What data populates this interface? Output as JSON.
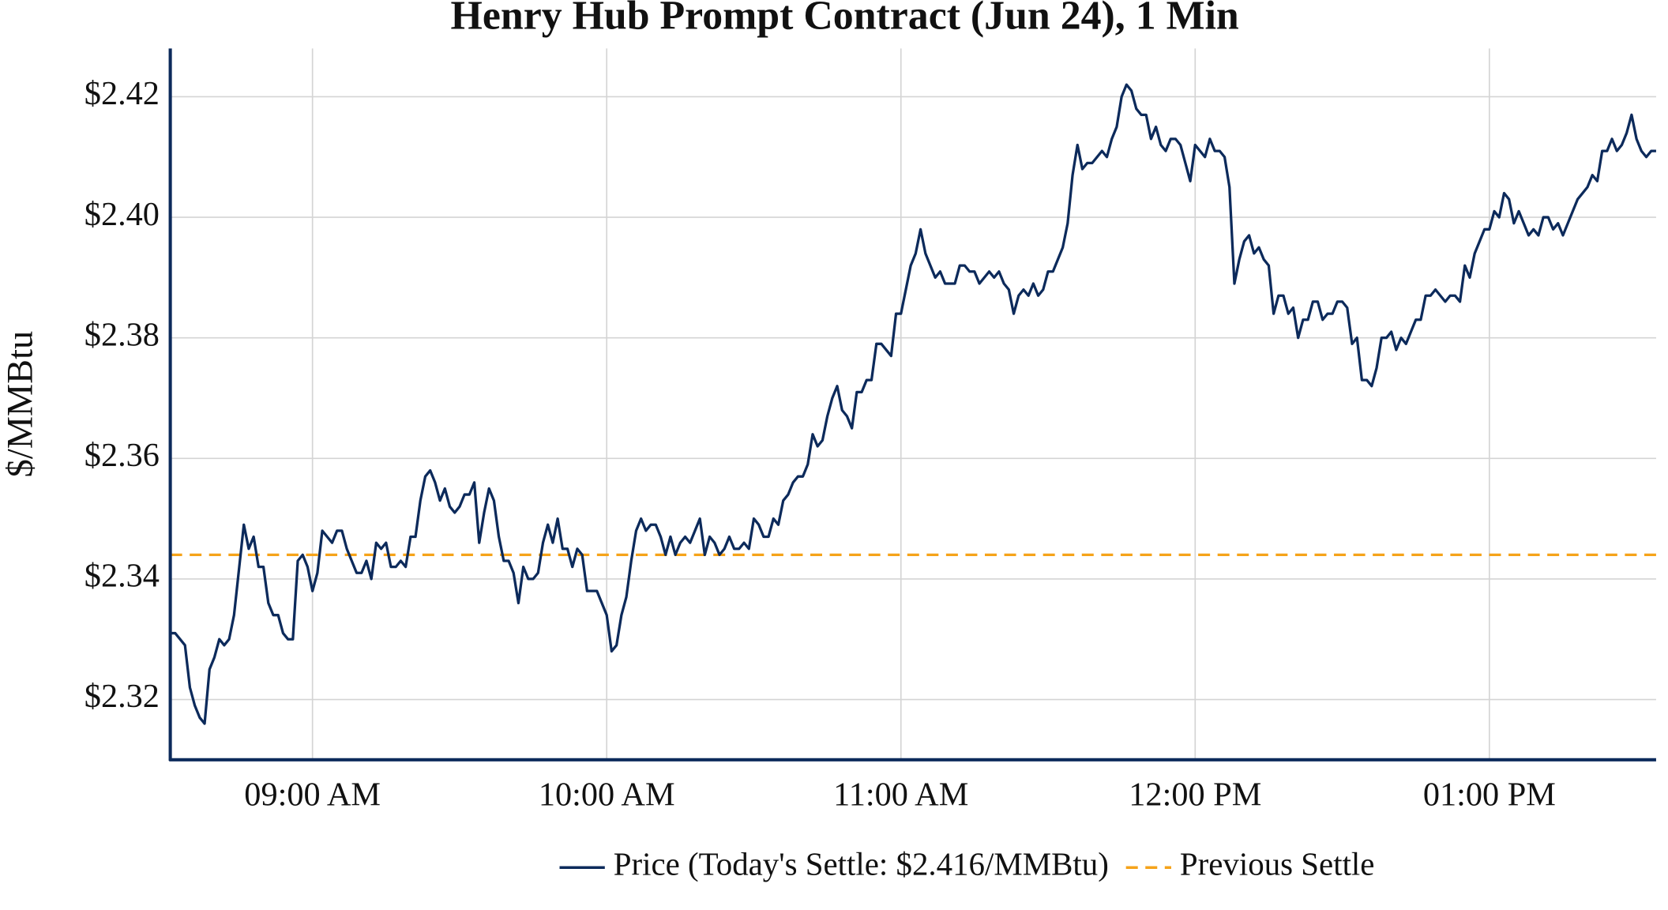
{
  "chart_data": {
    "type": "line",
    "title": "Henry Hub Prompt Contract (Jun 24), 1 Min",
    "y_label": "$/MMBtu",
    "x": [
      "08:31 AM",
      "08:32 AM",
      "08:34 AM",
      "08:35 AM",
      "08:36 AM",
      "08:37 AM",
      "08:38 AM",
      "08:39 AM",
      "08:40 AM",
      "08:41 AM",
      "08:42 AM",
      "08:43 AM",
      "08:44 AM",
      "08:46 AM",
      "08:47 AM",
      "08:48 AM",
      "08:49 AM",
      "08:50 AM",
      "08:51 AM",
      "08:52 AM",
      "08:53 AM",
      "08:54 AM",
      "08:55 AM",
      "08:56 AM",
      "08:57 AM",
      "08:58 AM",
      "08:59 AM",
      "09:00 AM",
      "09:01 AM",
      "09:02 AM",
      "09:03 AM",
      "09:04 AM",
      "09:05 AM",
      "09:06 AM",
      "09:07 AM",
      "09:08 AM",
      "09:09 AM",
      "09:10 AM",
      "09:11 AM",
      "09:12 AM",
      "09:13 AM",
      "09:14 AM",
      "09:15 AM",
      "09:16 AM",
      "09:17 AM",
      "09:18 AM",
      "09:19 AM",
      "09:20 AM",
      "09:21 AM",
      "09:22 AM",
      "09:23 AM",
      "09:24 AM",
      "09:25 AM",
      "09:26 AM",
      "09:27 AM",
      "09:28 AM",
      "09:29 AM",
      "09:30 AM",
      "09:31 AM",
      "09:32 AM",
      "09:33 AM",
      "09:34 AM",
      "09:35 AM",
      "09:36 AM",
      "09:37 AM",
      "09:38 AM",
      "09:39 AM",
      "09:40 AM",
      "09:41 AM",
      "09:42 AM",
      "09:43 AM",
      "09:44 AM",
      "09:45 AM",
      "09:46 AM",
      "09:47 AM",
      "09:48 AM",
      "09:49 AM",
      "09:50 AM",
      "09:51 AM",
      "09:52 AM",
      "09:53 AM",
      "09:54 AM",
      "09:55 AM",
      "09:56 AM",
      "09:57 AM",
      "09:58 AM",
      "09:59 AM",
      "10:00 AM",
      "10:01 AM",
      "10:02 AM",
      "10:03 AM",
      "10:04 AM",
      "10:05 AM",
      "10:06 AM",
      "10:07 AM",
      "10:08 AM",
      "10:09 AM",
      "10:10 AM",
      "10:11 AM",
      "10:12 AM",
      "10:13 AM",
      "10:14 AM",
      "10:15 AM",
      "10:16 AM",
      "10:17 AM",
      "10:18 AM",
      "10:19 AM",
      "10:20 AM",
      "10:21 AM",
      "10:22 AM",
      "10:23 AM",
      "10:24 AM",
      "10:25 AM",
      "10:26 AM",
      "10:27 AM",
      "10:28 AM",
      "10:29 AM",
      "10:30 AM",
      "10:31 AM",
      "10:32 AM",
      "10:33 AM",
      "10:34 AM",
      "10:35 AM",
      "10:36 AM",
      "10:37 AM",
      "10:38 AM",
      "10:39 AM",
      "10:40 AM",
      "10:41 AM",
      "10:42 AM",
      "10:43 AM",
      "10:44 AM",
      "10:45 AM",
      "10:46 AM",
      "10:47 AM",
      "10:48 AM",
      "10:49 AM",
      "10:50 AM",
      "10:51 AM",
      "10:52 AM",
      "10:53 AM",
      "10:54 AM",
      "10:55 AM",
      "10:56 AM",
      "10:57 AM",
      "10:58 AM",
      "10:59 AM",
      "11:00 AM",
      "11:01 AM",
      "11:02 AM",
      "11:03 AM",
      "11:04 AM",
      "11:05 AM",
      "11:06 AM",
      "11:07 AM",
      "11:08 AM",
      "11:09 AM",
      "11:10 AM",
      "11:11 AM",
      "11:12 AM",
      "11:13 AM",
      "11:14 AM",
      "11:15 AM",
      "11:16 AM",
      "11:17 AM",
      "11:18 AM",
      "11:19 AM",
      "11:20 AM",
      "11:21 AM",
      "11:22 AM",
      "11:23 AM",
      "11:24 AM",
      "11:25 AM",
      "11:26 AM",
      "11:27 AM",
      "11:28 AM",
      "11:29 AM",
      "11:30 AM",
      "11:31 AM",
      "11:32 AM",
      "11:33 AM",
      "11:34 AM",
      "11:35 AM",
      "11:36 AM",
      "11:37 AM",
      "11:38 AM",
      "11:39 AM",
      "11:40 AM",
      "11:41 AM",
      "11:42 AM",
      "11:43 AM",
      "11:44 AM",
      "11:45 AM",
      "11:46 AM",
      "11:47 AM",
      "11:48 AM",
      "11:49 AM",
      "11:50 AM",
      "11:51 AM",
      "11:52 AM",
      "11:53 AM",
      "11:54 AM",
      "11:55 AM",
      "11:56 AM",
      "11:57 AM",
      "11:58 AM",
      "11:59 AM",
      "12:00 PM",
      "12:01 PM",
      "12:02 PM",
      "12:03 PM",
      "12:04 PM",
      "12:05 PM",
      "12:06 PM",
      "12:07 PM",
      "12:08 PM",
      "12:09 PM",
      "12:10 PM",
      "12:11 PM",
      "12:12 PM",
      "12:13 PM",
      "12:14 PM",
      "12:15 PM",
      "12:16 PM",
      "12:17 PM",
      "12:18 PM",
      "12:19 PM",
      "12:20 PM",
      "12:21 PM",
      "12:22 PM",
      "12:23 PM",
      "12:24 PM",
      "12:25 PM",
      "12:26 PM",
      "12:27 PM",
      "12:28 PM",
      "12:29 PM",
      "12:30 PM",
      "12:31 PM",
      "12:32 PM",
      "12:33 PM",
      "12:34 PM",
      "12:35 PM",
      "12:36 PM",
      "12:37 PM",
      "12:38 PM",
      "12:39 PM",
      "12:40 PM",
      "12:41 PM",
      "12:42 PM",
      "12:43 PM",
      "12:44 PM",
      "12:45 PM",
      "12:46 PM",
      "12:47 PM",
      "12:48 PM",
      "12:49 PM",
      "12:50 PM",
      "12:51 PM",
      "12:52 PM",
      "12:53 PM",
      "12:54 PM",
      "12:55 PM",
      "12:56 PM",
      "12:57 PM",
      "12:58 PM",
      "12:59 PM",
      "01:00 PM",
      "01:01 PM",
      "01:02 PM",
      "01:03 PM",
      "01:04 PM",
      "01:05 PM",
      "01:06 PM",
      "01:07 PM",
      "01:08 PM",
      "01:09 PM",
      "01:10 PM",
      "01:11 PM",
      "01:12 PM",
      "01:13 PM",
      "01:14 PM",
      "01:15 PM",
      "01:16 PM",
      "01:17 PM",
      "01:18 PM",
      "01:19 PM",
      "01:20 PM",
      "01:21 PM",
      "01:22 PM",
      "01:23 PM",
      "01:24 PM",
      "01:25 PM",
      "01:26 PM",
      "01:27 PM",
      "01:28 PM",
      "01:29 PM",
      "01:30 PM",
      "01:31 PM",
      "01:32 PM",
      "01:33 PM",
      "01:34 PM"
    ],
    "series": [
      {
        "name": "Price (Today's Settle: $2.416/MMBtu)",
        "color": "#0c2a5b",
        "values": [
          2.331,
          2.331,
          2.329,
          2.322,
          2.319,
          2.317,
          2.316,
          2.325,
          2.327,
          2.33,
          2.329,
          2.33,
          2.334,
          2.349,
          2.345,
          2.347,
          2.342,
          2.342,
          2.336,
          2.334,
          2.334,
          2.331,
          2.33,
          2.33,
          2.343,
          2.344,
          2.342,
          2.338,
          2.341,
          2.348,
          2.347,
          2.346,
          2.348,
          2.348,
          2.345,
          2.343,
          2.341,
          2.341,
          2.343,
          2.34,
          2.346,
          2.345,
          2.346,
          2.342,
          2.342,
          2.343,
          2.342,
          2.347,
          2.347,
          2.353,
          2.357,
          2.358,
          2.356,
          2.353,
          2.355,
          2.352,
          2.351,
          2.352,
          2.354,
          2.354,
          2.356,
          2.346,
          2.351,
          2.355,
          2.353,
          2.347,
          2.343,
          2.343,
          2.341,
          2.336,
          2.342,
          2.34,
          2.34,
          2.341,
          2.346,
          2.349,
          2.346,
          2.35,
          2.345,
          2.345,
          2.342,
          2.345,
          2.344,
          2.338,
          2.338,
          2.338,
          2.336,
          2.334,
          2.328,
          2.329,
          2.334,
          2.337,
          2.343,
          2.348,
          2.35,
          2.348,
          2.349,
          2.349,
          2.347,
          2.344,
          2.347,
          2.344,
          2.346,
          2.347,
          2.346,
          2.348,
          2.35,
          2.344,
          2.347,
          2.346,
          2.344,
          2.345,
          2.347,
          2.345,
          2.345,
          2.346,
          2.345,
          2.35,
          2.349,
          2.347,
          2.347,
          2.35,
          2.349,
          2.353,
          2.354,
          2.356,
          2.357,
          2.357,
          2.359,
          2.364,
          2.362,
          2.363,
          2.367,
          2.37,
          2.372,
          2.368,
          2.367,
          2.365,
          2.371,
          2.371,
          2.373,
          2.373,
          2.379,
          2.379,
          2.378,
          2.377,
          2.384,
          2.384,
          2.388,
          2.392,
          2.394,
          2.398,
          2.394,
          2.392,
          2.39,
          2.391,
          2.389,
          2.389,
          2.389,
          2.392,
          2.392,
          2.391,
          2.391,
          2.389,
          2.39,
          2.391,
          2.39,
          2.391,
          2.389,
          2.388,
          2.384,
          2.387,
          2.388,
          2.387,
          2.389,
          2.387,
          2.388,
          2.391,
          2.391,
          2.393,
          2.395,
          2.399,
          2.407,
          2.412,
          2.408,
          2.409,
          2.409,
          2.41,
          2.411,
          2.41,
          2.413,
          2.415,
          2.42,
          2.422,
          2.421,
          2.418,
          2.417,
          2.417,
          2.413,
          2.415,
          2.412,
          2.411,
          2.413,
          2.413,
          2.412,
          2.409,
          2.406,
          2.412,
          2.411,
          2.41,
          2.413,
          2.411,
          2.411,
          2.41,
          2.405,
          2.389,
          2.393,
          2.396,
          2.397,
          2.394,
          2.395,
          2.393,
          2.392,
          2.384,
          2.387,
          2.387,
          2.384,
          2.385,
          2.38,
          2.383,
          2.383,
          2.386,
          2.386,
          2.383,
          2.384,
          2.384,
          2.386,
          2.386,
          2.385,
          2.379,
          2.38,
          2.373,
          2.373,
          2.372,
          2.375,
          2.38,
          2.38,
          2.381,
          2.378,
          2.38,
          2.379,
          2.381,
          2.383,
          2.383,
          2.387,
          2.387,
          2.388,
          2.387,
          2.386,
          2.387,
          2.387,
          2.386,
          2.392,
          2.39,
          2.394,
          2.396,
          2.398,
          2.398,
          2.401,
          2.4,
          2.404,
          2.403,
          2.399,
          2.401,
          2.399,
          2.397,
          2.398,
          2.397,
          2.4,
          2.4,
          2.398,
          2.399,
          2.397,
          2.399,
          2.401,
          2.403,
          2.404,
          2.405,
          2.407,
          2.406,
          2.411,
          2.411,
          2.413,
          2.411,
          2.412,
          2.414,
          2.417,
          2.413,
          2.411,
          2.41,
          2.411,
          2.411
        ]
      }
    ],
    "reference_lines": [
      {
        "name": "Previous Settle",
        "value": 2.344,
        "color": "#f5a31a",
        "dash": true
      }
    ],
    "xlim": [
      "08:31 AM",
      "01:34 PM"
    ],
    "xticks": [
      "09:00 AM",
      "10:00 AM",
      "11:00 AM",
      "12:00 PM",
      "01:00 PM"
    ],
    "ylim": [
      2.31,
      2.428
    ],
    "yticks": [
      {
        "value": 2.32,
        "label": "$2.32"
      },
      {
        "value": 2.34,
        "label": "$2.34"
      },
      {
        "value": 2.36,
        "label": "$2.36"
      },
      {
        "value": 2.38,
        "label": "$2.38"
      },
      {
        "value": 2.4,
        "label": "$2.40"
      },
      {
        "value": 2.42,
        "label": "$2.42"
      }
    ],
    "grid": true,
    "legend": "bottom"
  }
}
